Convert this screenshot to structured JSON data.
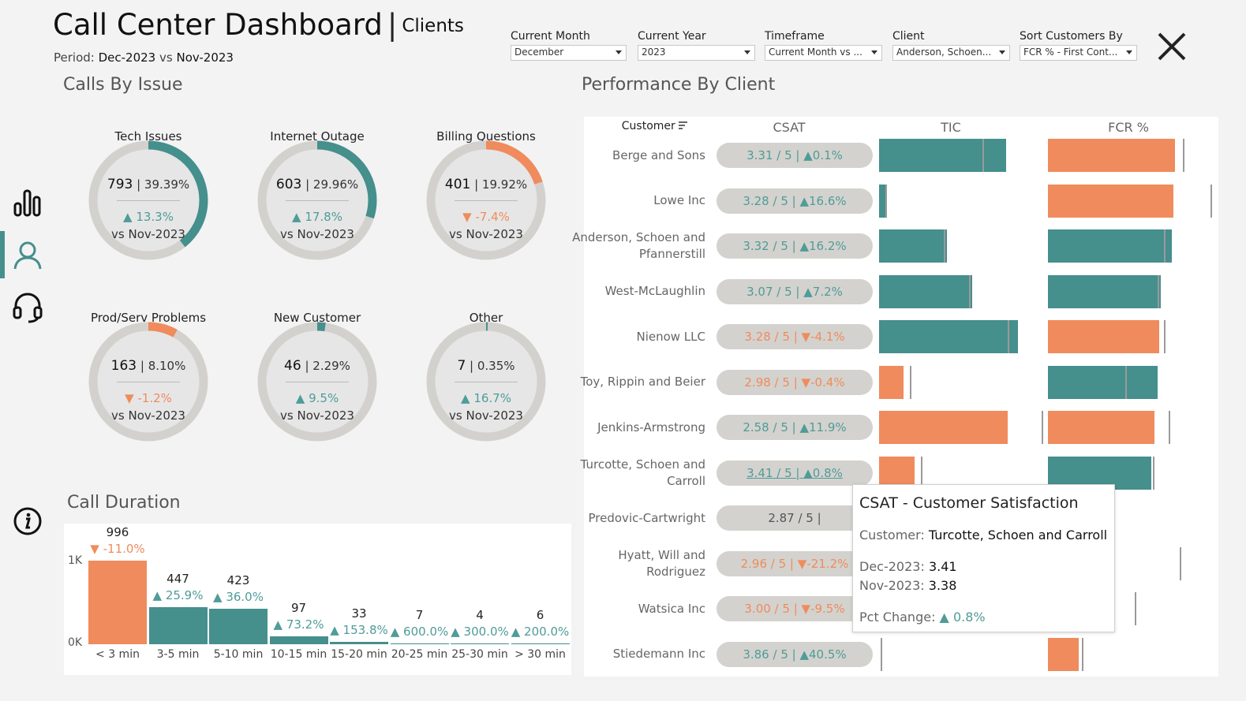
{
  "header": {
    "title": "Call Center Dashboard",
    "separator": "|",
    "subtitle": "Clients",
    "period_label": "Period:",
    "period_current": "Dec-2023",
    "period_vs": "vs",
    "period_prior": "Nov-2023"
  },
  "filters": [
    {
      "label": "Current Month",
      "value": "December"
    },
    {
      "label": "Current Year",
      "value": "2023"
    },
    {
      "label": "Timeframe",
      "value": "Current Month vs ..."
    },
    {
      "label": "Client",
      "value": "Anderson, Schoen..."
    },
    {
      "label": "Sort Customers By",
      "value": "FCR % - First Cont..."
    }
  ],
  "sections": {
    "calls_by_issue": "Calls By Issue",
    "performance": "Performance By Client",
    "call_duration": "Call Duration"
  },
  "colors": {
    "teal": "#458f8d",
    "orange": "#ef8b5d",
    "ring": "#d3d1cd",
    "up_text": "#4f9c99",
    "down_text": "#ee8c5c"
  },
  "issues": [
    {
      "name": "Tech Issues",
      "count": "793",
      "pct": "39.39%",
      "share": 0.3939,
      "change": "13.3%",
      "arrow": "▲",
      "dir": "up",
      "vs": "vs Nov-2023"
    },
    {
      "name": "Internet Outage",
      "count": "603",
      "pct": "29.96%",
      "share": 0.2996,
      "change": "17.8%",
      "arrow": "▲",
      "dir": "up",
      "vs": "vs Nov-2023"
    },
    {
      "name": "Billing Questions",
      "count": "401",
      "pct": "19.92%",
      "share": 0.1992,
      "change": "-7.4%",
      "arrow": "▼",
      "dir": "down",
      "vs": "vs Nov-2023"
    },
    {
      "name": "Prod/Serv Problems",
      "count": "163",
      "pct": "8.10%",
      "share": 0.081,
      "change": "-1.2%",
      "arrow": "▼",
      "dir": "down",
      "vs": "vs Nov-2023"
    },
    {
      "name": "New Customer",
      "count": "46",
      "pct": "2.29%",
      "share": 0.0229,
      "change": "9.5%",
      "arrow": "▲",
      "dir": "up",
      "vs": "vs Nov-2023"
    },
    {
      "name": "Other",
      "count": "7",
      "pct": "0.35%",
      "share": 0.0035,
      "change": "16.7%",
      "arrow": "▲",
      "dir": "up",
      "vs": "vs Nov-2023"
    }
  ],
  "chart_data": {
    "type": "bar",
    "categories": [
      "< 3 min",
      "3-5 min",
      "5-10 min",
      "10-15 min",
      "15-20 min",
      "20-25 min",
      "25-30 min",
      "> 30 min"
    ],
    "values": [
      996,
      447,
      423,
      97,
      33,
      7,
      4,
      6
    ],
    "changes": [
      "-11.0%",
      "25.9%",
      "36.0%",
      "73.2%",
      "153.8%",
      "600.0%",
      "300.0%",
      "200.0%"
    ],
    "change_dir": [
      "down",
      "up",
      "up",
      "up",
      "up",
      "up",
      "up",
      "up"
    ],
    "y_ticks": [
      "1K",
      "0K"
    ],
    "ylim": [
      0,
      1000
    ]
  },
  "performance": {
    "headers": {
      "customer": "Customer",
      "csat": "CSAT",
      "tic": "TIC",
      "fcr": "FCR %"
    },
    "rows": [
      {
        "customer": [
          "Berge and Sons"
        ],
        "csat": "3.31 / 5 |",
        "csat_arrow": "▲",
        "csat_chg": "0.1%",
        "dir": "up",
        "tic": 0.82,
        "tic_ref": 0.67,
        "tic_color": "teal",
        "fcr": 0.82,
        "fcr_ref": 0.87,
        "fcr_color": "orange"
      },
      {
        "customer": [
          "Lowe Inc"
        ],
        "csat": "3.28 / 5 |",
        "csat_arrow": "▲",
        "csat_chg": "16.6%",
        "dir": "up",
        "tic": 0.05,
        "tic_ref": 0.04,
        "tic_color": "teal",
        "fcr": 0.81,
        "fcr_ref": 1.05,
        "fcr_color": "orange"
      },
      {
        "customer": [
          "Anderson, Schoen and",
          "Pfannerstill"
        ],
        "csat": "3.32 / 5 |",
        "csat_arrow": "▲",
        "csat_chg": "16.2%",
        "dir": "up",
        "tic": 0.44,
        "tic_ref": 0.42,
        "tic_color": "teal",
        "fcr": 0.8,
        "fcr_ref": 0.75,
        "fcr_color": "teal"
      },
      {
        "customer": [
          "West-McLaughlin"
        ],
        "csat": "3.07 / 5 |",
        "csat_arrow": "▲",
        "csat_chg": "7.2%",
        "dir": "up",
        "tic": 0.6,
        "tic_ref": 0.58,
        "tic_color": "teal",
        "fcr": 0.73,
        "fcr_ref": 0.71,
        "fcr_color": "teal"
      },
      {
        "customer": [
          "Nienow LLC"
        ],
        "csat": "3.28 / 5 |",
        "csat_arrow": "▼",
        "csat_chg": "-4.1%",
        "dir": "down",
        "tic": 0.9,
        "tic_ref": 0.83,
        "tic_color": "teal",
        "fcr": 0.72,
        "fcr_ref": 0.75,
        "fcr_color": "orange"
      },
      {
        "customer": [
          "Toy, Rippin and Beier"
        ],
        "csat": "2.98 / 5 |",
        "csat_arrow": "▼",
        "csat_chg": "-0.4%",
        "dir": "down",
        "tic": 0.16,
        "tic_ref": 0.2,
        "tic_color": "orange",
        "fcr": 0.71,
        "fcr_ref": 0.5,
        "fcr_color": "teal"
      },
      {
        "customer": [
          "Jenkins-Armstrong"
        ],
        "csat": "2.58 / 5 |",
        "csat_arrow": "▲",
        "csat_chg": "11.9%",
        "dir": "up",
        "tic": 0.83,
        "tic_ref": 1.05,
        "tic_color": "orange",
        "fcr": 0.69,
        "fcr_ref": 0.78,
        "fcr_color": "orange"
      },
      {
        "customer": [
          "Turcotte, Schoen and",
          "Carroll"
        ],
        "csat": "3.41 / 5 |",
        "csat_arrow": "▲",
        "csat_chg": "0.8%",
        "dir": "up",
        "underline": true,
        "tic": 0.23,
        "tic_ref": 0.27,
        "tic_color": "orange",
        "fcr": 0.67,
        "fcr_ref": 0.68,
        "fcr_color": "teal"
      },
      {
        "customer": [
          "Predovic-Cartwright"
        ],
        "csat": "2.87 / 5 |",
        "csat_arrow": "",
        "csat_chg": "",
        "dir": "none",
        "tic": 0,
        "tic_ref": null,
        "tic_color": "teal",
        "fcr": 0.5,
        "fcr_ref": null,
        "fcr_color": "none"
      },
      {
        "customer": [
          "Hyatt, Will and",
          "Rodriguez"
        ],
        "csat": "2.96 / 5 |",
        "csat_arrow": "▼",
        "csat_chg": "-21.2%",
        "dir": "down",
        "tic": 0,
        "tic_ref": null,
        "tic_color": "teal",
        "fcr": 0,
        "fcr_ref": 0.85,
        "fcr_color": "orange"
      },
      {
        "customer": [
          "Watsica Inc"
        ],
        "csat": "3.00 / 5 |",
        "csat_arrow": "▼",
        "csat_chg": "-9.5%",
        "dir": "down",
        "tic": 0,
        "tic_ref": null,
        "tic_color": "teal",
        "fcr": 0,
        "fcr_ref": 0.56,
        "fcr_color": "orange"
      },
      {
        "customer": [
          "Stiedemann Inc"
        ],
        "csat": "3.86 / 5 |",
        "csat_arrow": "▲",
        "csat_chg": "40.5%",
        "dir": "up",
        "tic": 0,
        "tic_ref": 0.01,
        "tic_color": "teal",
        "fcr": 0.2,
        "fcr_ref": 0.22,
        "fcr_color": "orange"
      }
    ]
  },
  "tooltip": {
    "title": "CSAT - Customer Satisfaction",
    "customer_label": "Customer:",
    "customer_value": "Turcotte, Schoen and Carroll",
    "cur_label": "Dec-2023:",
    "cur_value": "3.41",
    "prev_label": "Nov-2023:",
    "prev_value": "3.38",
    "chg_label": "Pct Change:",
    "chg_arrow": "▲",
    "chg_value": "0.8%"
  },
  "icons": [
    "bar-chart-icon",
    "user-icon",
    "headset-icon",
    "info-icon",
    "close-icon",
    "sort-icon"
  ]
}
